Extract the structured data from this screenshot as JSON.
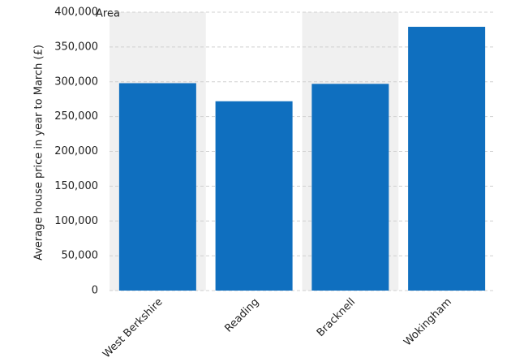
{
  "chart_data": {
    "type": "bar",
    "x_label": "Area",
    "y_label": "Average house price in year to March (£)",
    "categories": [
      "West Berkshire",
      "Reading",
      "Bracknell",
      "Wokingham"
    ],
    "values": [
      298000,
      272000,
      297000,
      379000
    ],
    "color": "#0f6fbf",
    "band_color": "#f0f0f0",
    "ylim": [
      0,
      400000
    ],
    "yticks": [
      0,
      {
        "value": 50000,
        "label": "50,000"
      },
      {
        "value": 100000,
        "label": "100,000"
      },
      {
        "value": 150000,
        "label": "150,000"
      },
      {
        "value": 200000,
        "label": "200,000"
      },
      {
        "value": 250000,
        "label": "250,000"
      },
      {
        "value": 300000,
        "label": "300,000"
      },
      {
        "value": 350000,
        "label": "350,000"
      },
      {
        "value": 400000,
        "label": "400,000"
      }
    ],
    "grid": true
  }
}
